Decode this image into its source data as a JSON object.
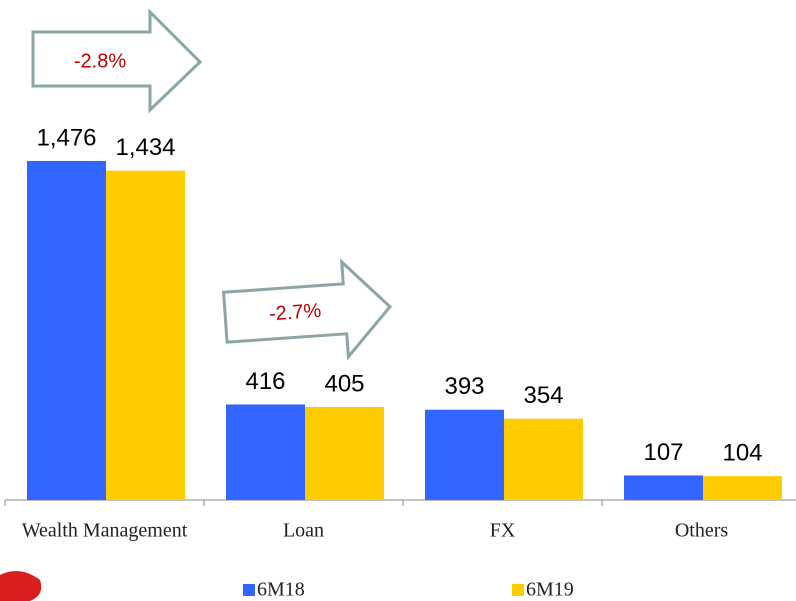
{
  "chart_data": {
    "type": "bar",
    "categories": [
      "Wealth Management",
      "Loan",
      "FX",
      "Others"
    ],
    "series": [
      {
        "name": "6M18",
        "color": "#3366ff",
        "values": [
          1476,
          416,
          393,
          107
        ],
        "value_labels": [
          "1,476",
          "416",
          "393",
          "107"
        ]
      },
      {
        "name": "6M19",
        "color": "#ffcc00",
        "values": [
          1434,
          405,
          354,
          104
        ],
        "value_labels": [
          "1,434",
          "405",
          "354",
          "104"
        ]
      }
    ],
    "annotations": [
      "-2.8%",
      "-2.7%"
    ]
  }
}
